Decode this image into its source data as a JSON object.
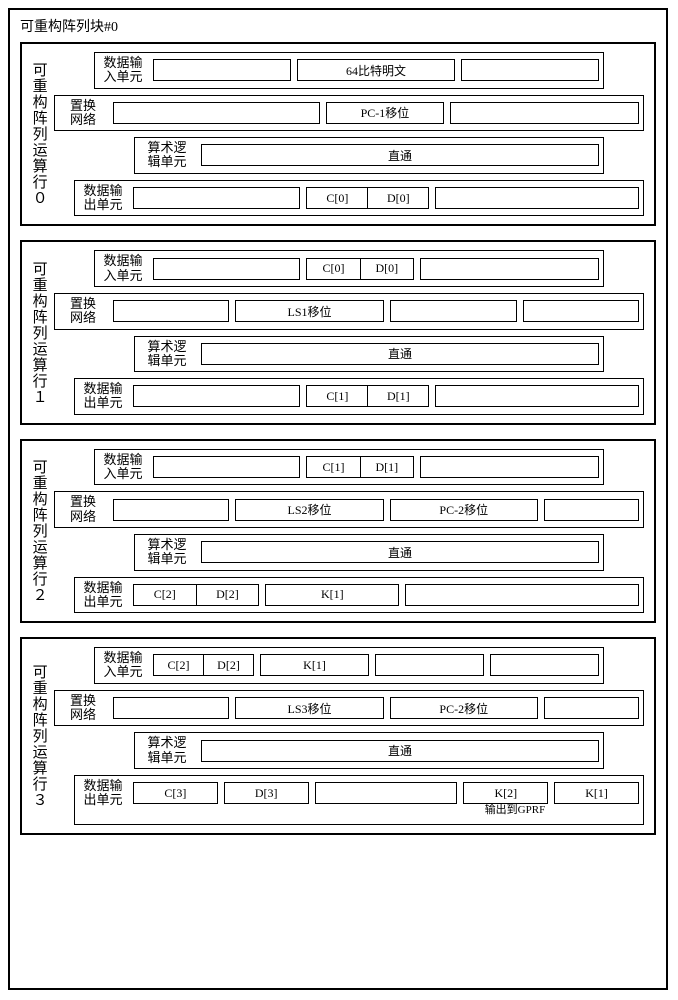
{
  "outer_title": "可重构阵列块#0",
  "common": {
    "data_in_label": "数据输\n入单元",
    "perm_label": "置换\n网络",
    "alu_label": "算术逻\n辑单元",
    "data_out_label": "数据输\n出单元",
    "passthrough": "直通"
  },
  "rows": [
    {
      "row_label": "可重构阵列运算行０",
      "data_in": {
        "slots": [
          {
            "flex": 1.2,
            "text": ""
          },
          {
            "flex": 1.4,
            "text": "64比特明文"
          },
          {
            "flex": 1.2,
            "text": ""
          }
        ]
      },
      "perm": {
        "slots": [
          {
            "flex": 2.2,
            "text": ""
          },
          {
            "flex": 1.2,
            "text": "PC-1移位"
          },
          {
            "flex": 2.0,
            "text": ""
          }
        ]
      },
      "alu": {
        "slots": [
          {
            "flex": 1,
            "text": "直通"
          }
        ]
      },
      "data_out": {
        "slots": [
          {
            "flex": 1.3,
            "text": ""
          },
          {
            "flex": 1.0,
            "split": [
              "C[0]",
              "D[0]"
            ]
          },
          {
            "flex": 1.6,
            "text": ""
          }
        ]
      }
    },
    {
      "row_label": "可重构阵列运算行１",
      "data_in": {
        "slots": [
          {
            "flex": 1.3,
            "text": ""
          },
          {
            "flex": 1.0,
            "split": [
              "C[0]",
              "D[0]"
            ]
          },
          {
            "flex": 1.6,
            "text": ""
          }
        ]
      },
      "perm": {
        "slots": [
          {
            "flex": 1.0,
            "text": ""
          },
          {
            "flex": 1.3,
            "text": "LS1移位"
          },
          {
            "flex": 1.1,
            "text": ""
          },
          {
            "flex": 1.0,
            "text": ""
          }
        ]
      },
      "alu": {
        "slots": [
          {
            "flex": 1,
            "text": "直通"
          }
        ]
      },
      "data_out": {
        "slots": [
          {
            "flex": 1.3,
            "text": ""
          },
          {
            "flex": 1.0,
            "split": [
              "C[1]",
              "D[1]"
            ]
          },
          {
            "flex": 1.6,
            "text": ""
          }
        ]
      }
    },
    {
      "row_label": "可重构阵列运算行２",
      "data_in": {
        "slots": [
          {
            "flex": 1.3,
            "text": ""
          },
          {
            "flex": 1.0,
            "split": [
              "C[1]",
              "D[1]"
            ]
          },
          {
            "flex": 1.6,
            "text": ""
          }
        ]
      },
      "perm": {
        "slots": [
          {
            "flex": 1.0,
            "text": ""
          },
          {
            "flex": 1.3,
            "text": "LS2移位"
          },
          {
            "flex": 1.3,
            "text": "PC-2移位"
          },
          {
            "flex": 0.8,
            "text": ""
          }
        ]
      },
      "alu": {
        "slots": [
          {
            "flex": 1,
            "text": "直通"
          }
        ]
      },
      "data_out": {
        "slots": [
          {
            "flex": 1.0,
            "split": [
              "C[2]",
              "D[2]"
            ]
          },
          {
            "flex": 1.0,
            "text": "K[1]"
          },
          {
            "flex": 1.8,
            "text": ""
          }
        ]
      }
    },
    {
      "row_label": "可重构阵列运算行３",
      "data_in": {
        "slots": [
          {
            "flex": 1.0,
            "split": [
              "C[2]",
              "D[2]"
            ]
          },
          {
            "flex": 1.0,
            "text": "K[1]"
          },
          {
            "flex": 1.0,
            "text": ""
          },
          {
            "flex": 1.0,
            "text": ""
          }
        ]
      },
      "perm": {
        "slots": [
          {
            "flex": 1.0,
            "text": ""
          },
          {
            "flex": 1.3,
            "text": "LS3移位"
          },
          {
            "flex": 1.3,
            "text": "PC-2移位"
          },
          {
            "flex": 0.8,
            "text": ""
          }
        ]
      },
      "alu": {
        "slots": [
          {
            "flex": 1,
            "text": "直通"
          }
        ]
      },
      "data_out": {
        "slots": [
          {
            "flex": 0.9,
            "text": "C[3]"
          },
          {
            "flex": 0.9,
            "text": "D[3]"
          },
          {
            "flex": 1.6,
            "text": ""
          },
          {
            "flex": 0.9,
            "text": "K[2]",
            "note": "输出到GPRF"
          },
          {
            "flex": 0.9,
            "text": "K[1]"
          }
        ],
        "extra_note": true
      }
    }
  ],
  "colors": {
    "border": "#000000",
    "background": "#ffffff",
    "text": "#000000"
  }
}
